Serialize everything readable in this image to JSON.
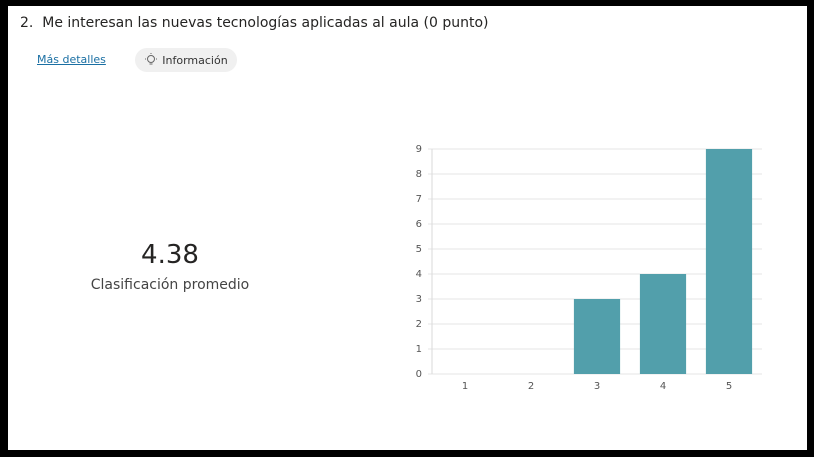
{
  "header": {
    "title": "2.  Me interesan las nuevas tecnologías aplicadas al aula (0 punto)",
    "details_link": "Más detalles",
    "info_button": "Información"
  },
  "summary": {
    "value": "4.38",
    "label": "Clasificación promedio"
  },
  "chart_data": {
    "type": "bar",
    "categories": [
      "1",
      "2",
      "3",
      "4",
      "5"
    ],
    "values": [
      0,
      0,
      3,
      4,
      9
    ],
    "color": "#529fab",
    "ylim": [
      0,
      9
    ],
    "yticks": [
      0,
      1,
      2,
      3,
      4,
      5,
      6,
      7,
      8,
      9
    ],
    "grid": true
  }
}
